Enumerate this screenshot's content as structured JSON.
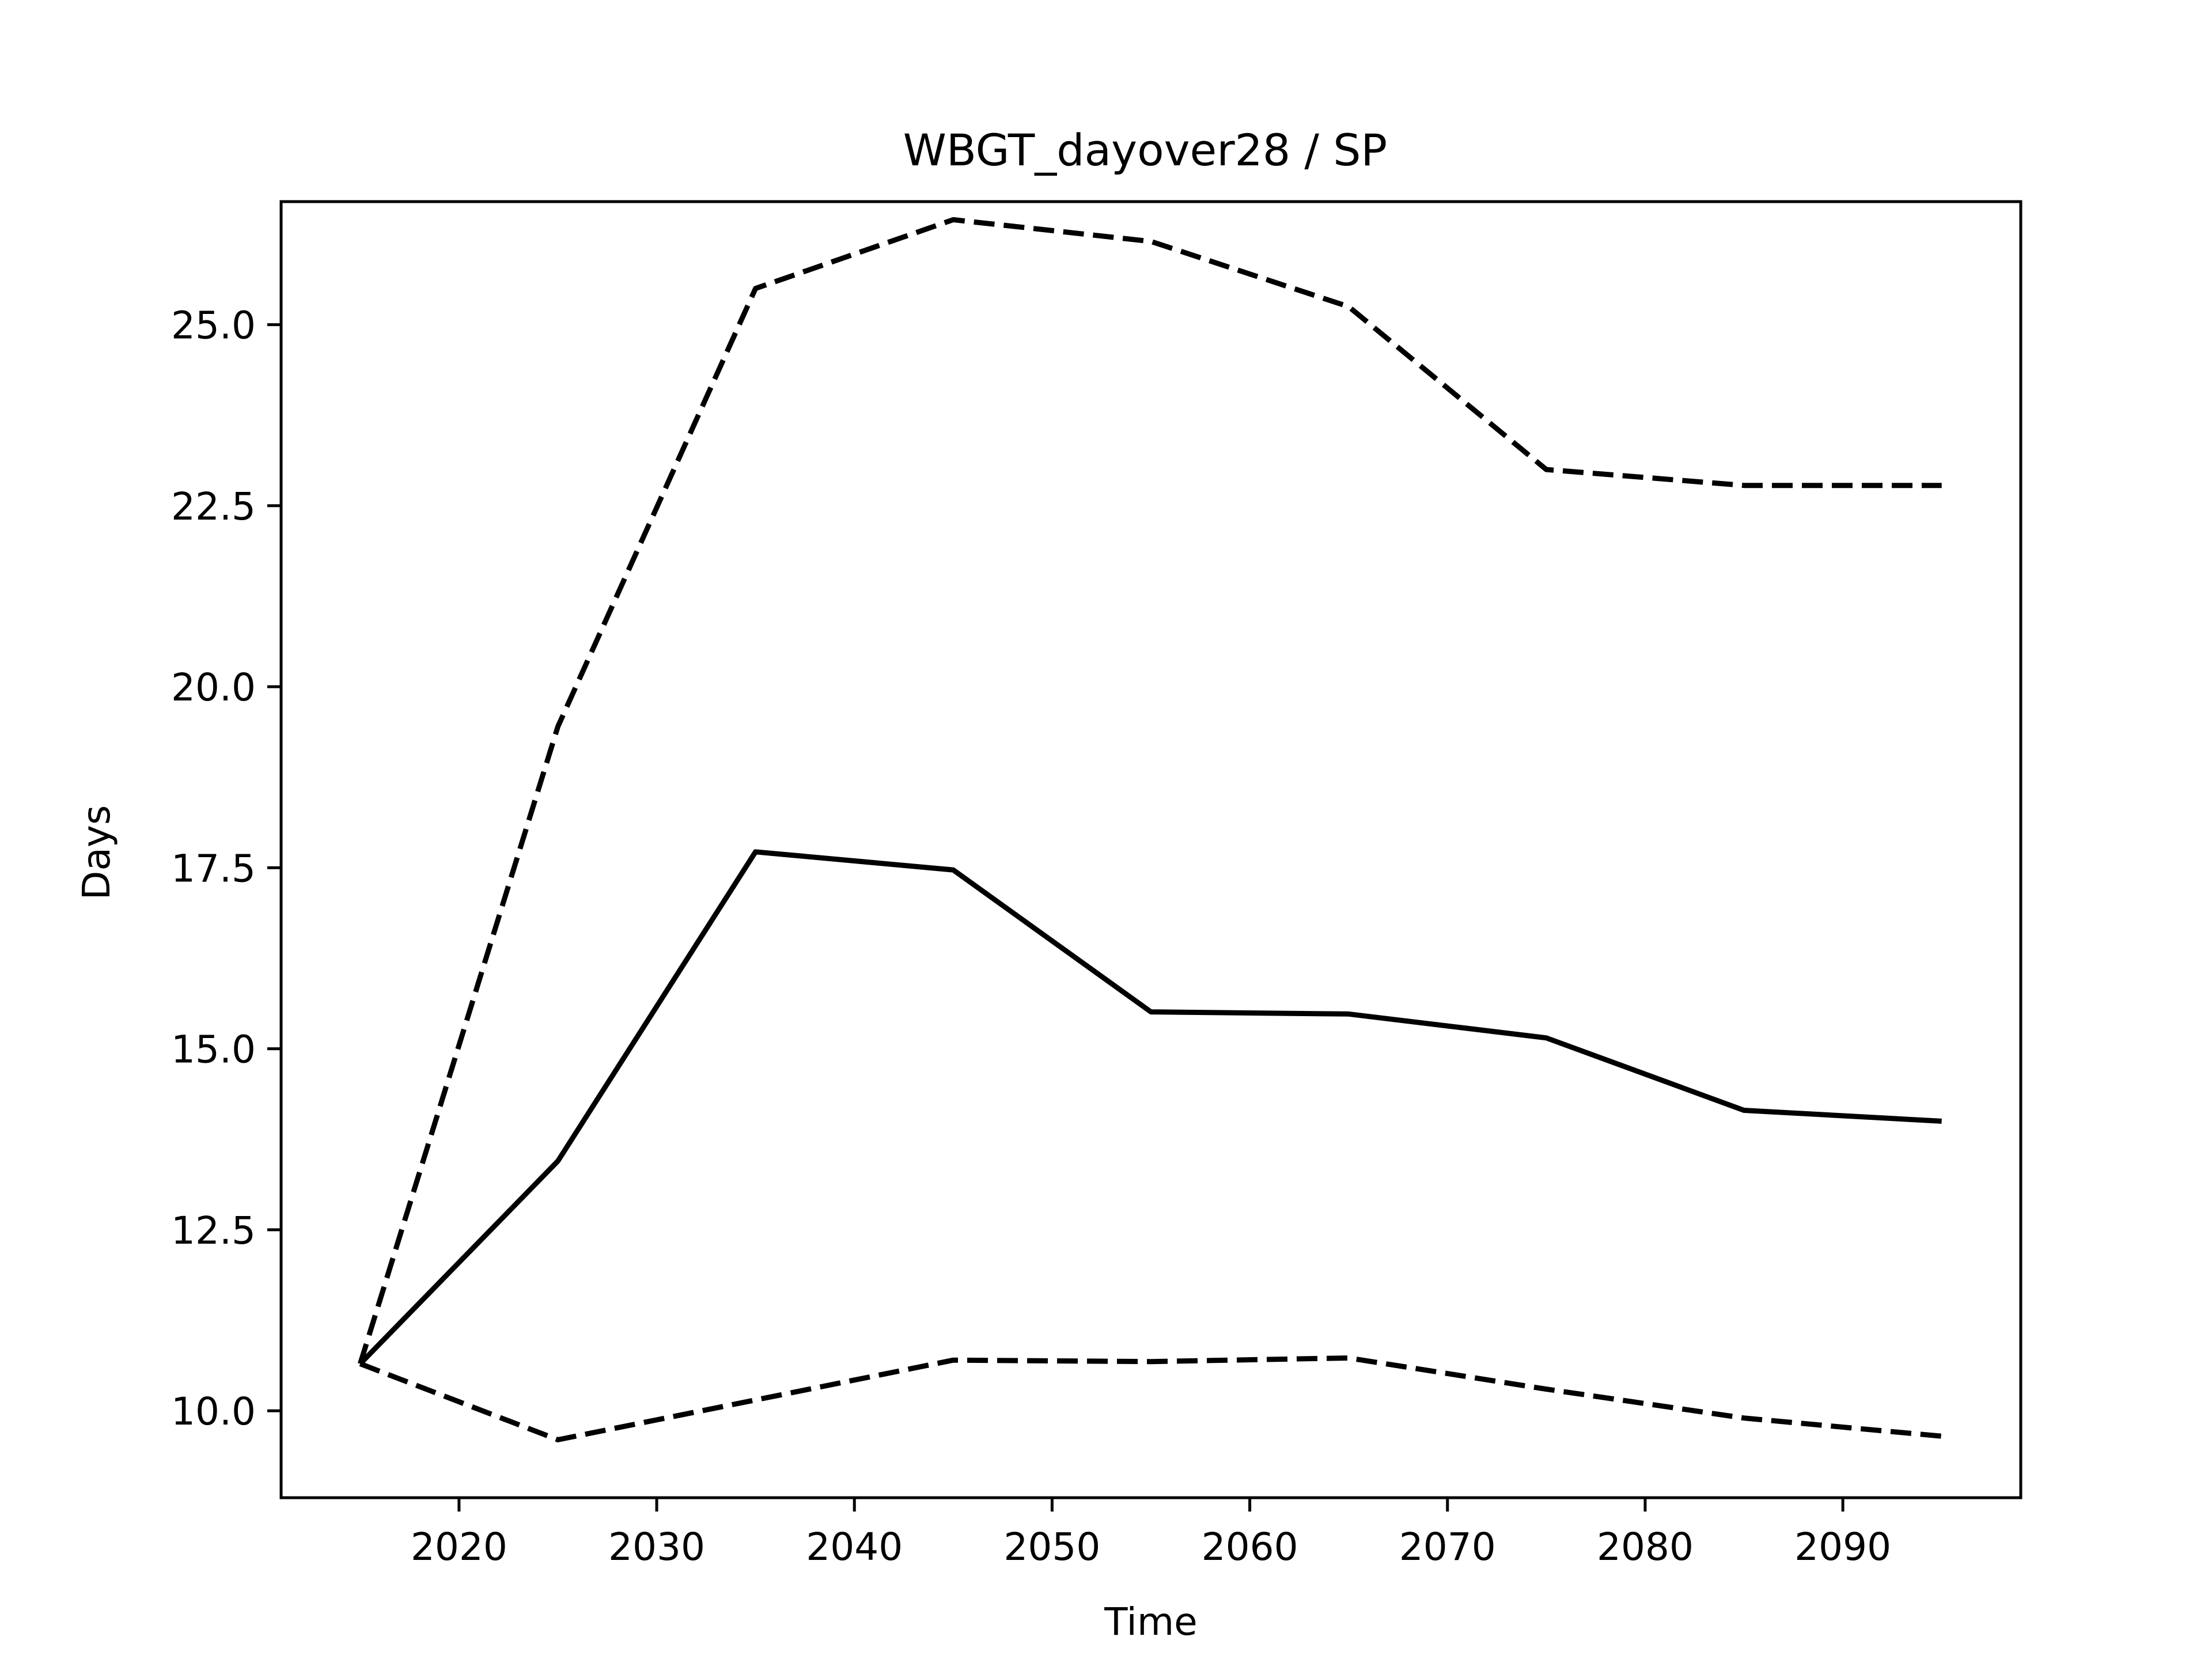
{
  "chart_data": {
    "type": "line",
    "title": "WBGT_dayover28 / SP",
    "xlabel": "Time",
    "ylabel": "Days",
    "xlim": [
      2011,
      2099
    ],
    "ylim": [
      8.8,
      26.7
    ],
    "x_ticks": [
      2020,
      2030,
      2040,
      2050,
      2060,
      2070,
      2080,
      2090
    ],
    "y_ticks": [
      10.0,
      12.5,
      15.0,
      17.5,
      20.0,
      22.5,
      25.0
    ],
    "y_tick_labels": [
      "10.0",
      "12.5",
      "15.0",
      "17.5",
      "20.0",
      "22.5",
      "25.0"
    ],
    "grid": false,
    "legend": "none",
    "x": [
      2015,
      2025,
      2035,
      2045,
      2055,
      2065,
      2075,
      2085,
      2095
    ],
    "series": [
      {
        "style": "solid",
        "values": [
          10.65,
          13.45,
          17.72,
          17.47,
          15.51,
          15.48,
          15.15,
          14.15,
          14.0
        ]
      },
      {
        "style": "dashed",
        "values": [
          10.65,
          19.45,
          25.5,
          26.45,
          26.15,
          25.25,
          23.0,
          22.78,
          22.78
        ]
      },
      {
        "style": "dashed",
        "values": [
          10.65,
          9.6,
          10.15,
          10.7,
          10.68,
          10.73,
          10.3,
          9.9,
          9.65
        ]
      }
    ],
    "colors": {
      "line": "#000000",
      "axes": "#000000",
      "background": "#ffffff"
    }
  }
}
